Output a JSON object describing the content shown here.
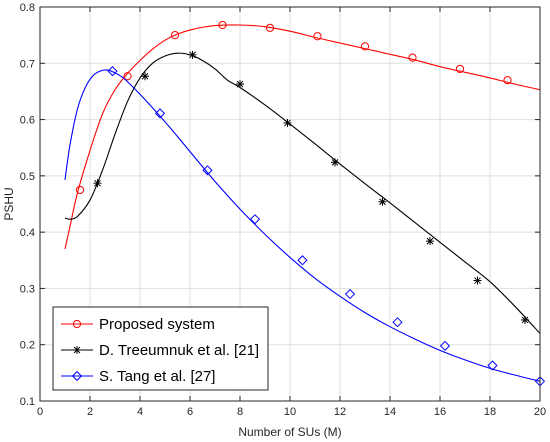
{
  "chart_data": {
    "type": "line",
    "title": "",
    "xlabel": "Number of SUs (M)",
    "ylabel": "PSHU",
    "xlim": [
      0,
      20
    ],
    "ylim": [
      0.1,
      0.8
    ],
    "xticks": [
      0,
      2,
      4,
      6,
      8,
      10,
      12,
      14,
      16,
      18,
      20
    ],
    "yticks": [
      0.1,
      0.2,
      0.3,
      0.4,
      0.5,
      0.6,
      0.7,
      0.8
    ],
    "xtick_labels": [
      "0",
      "2",
      "4",
      "6",
      "8",
      "10",
      "12",
      "14",
      "16",
      "18",
      "20"
    ],
    "ytick_labels": [
      "0.1",
      "0.2",
      "0.3",
      "0.4",
      "0.5",
      "0.6",
      "0.7",
      "0.8"
    ],
    "grid": true,
    "legend_position": "bottom-left",
    "series": [
      {
        "name": "Proposed system",
        "color": "#ff0000",
        "marker": "circle",
        "curve_x": [
          1.0,
          1.2,
          1.5,
          2.0,
          2.5,
          3.0,
          3.5,
          4.0,
          4.5,
          5.0,
          5.5,
          6.0,
          6.5,
          7.0,
          7.5,
          8.0,
          8.5,
          9.0,
          10.0,
          11.0,
          12.0,
          13.0,
          14.0,
          15.0,
          16.0,
          17.0,
          18.0,
          19.0,
          20.0
        ],
        "curve_y": [
          0.37,
          0.41,
          0.47,
          0.545,
          0.61,
          0.653,
          0.682,
          0.705,
          0.725,
          0.741,
          0.752,
          0.759,
          0.764,
          0.767,
          0.768,
          0.768,
          0.767,
          0.765,
          0.757,
          0.746,
          0.736,
          0.726,
          0.716,
          0.706,
          0.694,
          0.684,
          0.674,
          0.663,
          0.653
        ],
        "marker_x": [
          1.6,
          3.5,
          5.4,
          7.3,
          9.2,
          11.1,
          13.0,
          14.9,
          16.8,
          18.7
        ],
        "marker_y": [
          0.475,
          0.677,
          0.75,
          0.768,
          0.763,
          0.748,
          0.73,
          0.71,
          0.69,
          0.67
        ]
      },
      {
        "name": "D. Treeumnuk et al. [21]",
        "color": "#000000",
        "marker": "asterisk",
        "curve_x": [
          1.0,
          1.2,
          1.5,
          2.0,
          2.5,
          3.0,
          3.5,
          4.0,
          4.5,
          5.0,
          5.5,
          6.0,
          6.5,
          7.0,
          7.5,
          8.0,
          9.0,
          10.0,
          11.0,
          12.0,
          13.0,
          14.0,
          15.0,
          16.0,
          17.0,
          18.0,
          19.0,
          20.0
        ],
        "curve_y": [
          0.425,
          0.423,
          0.428,
          0.457,
          0.51,
          0.574,
          0.632,
          0.674,
          0.7,
          0.713,
          0.718,
          0.715,
          0.705,
          0.69,
          0.67,
          0.657,
          0.626,
          0.592,
          0.557,
          0.521,
          0.486,
          0.452,
          0.417,
          0.382,
          0.347,
          0.312,
          0.268,
          0.22
        ],
        "marker_x": [
          2.3,
          4.2,
          6.1,
          8.0,
          9.9,
          11.8,
          13.7,
          15.6,
          17.5,
          19.4
        ],
        "marker_y": [
          0.487,
          0.677,
          0.715,
          0.663,
          0.594,
          0.524,
          0.454,
          0.384,
          0.314,
          0.244
        ]
      },
      {
        "name": "S. Tang et al. [27]",
        "color": "#0000ff",
        "marker": "diamond",
        "curve_x": [
          1.0,
          1.2,
          1.5,
          1.8,
          2.1,
          2.4,
          2.7,
          3.0,
          3.3,
          3.6,
          4.0,
          4.5,
          5.0,
          5.5,
          6.0,
          7.0,
          8.0,
          9.0,
          10.0,
          11.0,
          12.0,
          13.0,
          14.0,
          15.0,
          16.0,
          17.0,
          18.0,
          19.0,
          20.0
        ],
        "curve_y": [
          0.493,
          0.555,
          0.619,
          0.656,
          0.677,
          0.686,
          0.688,
          0.683,
          0.675,
          0.663,
          0.645,
          0.621,
          0.596,
          0.57,
          0.543,
          0.49,
          0.441,
          0.396,
          0.355,
          0.318,
          0.286,
          0.257,
          0.232,
          0.21,
          0.19,
          0.173,
          0.158,
          0.146,
          0.135
        ],
        "marker_x": [
          2.9,
          4.8,
          6.7,
          8.6,
          10.5,
          12.4,
          14.3,
          16.2,
          18.1,
          20.0
        ],
        "marker_y": [
          0.686,
          0.611,
          0.51,
          0.423,
          0.35,
          0.29,
          0.24,
          0.198,
          0.163,
          0.135
        ]
      }
    ]
  }
}
